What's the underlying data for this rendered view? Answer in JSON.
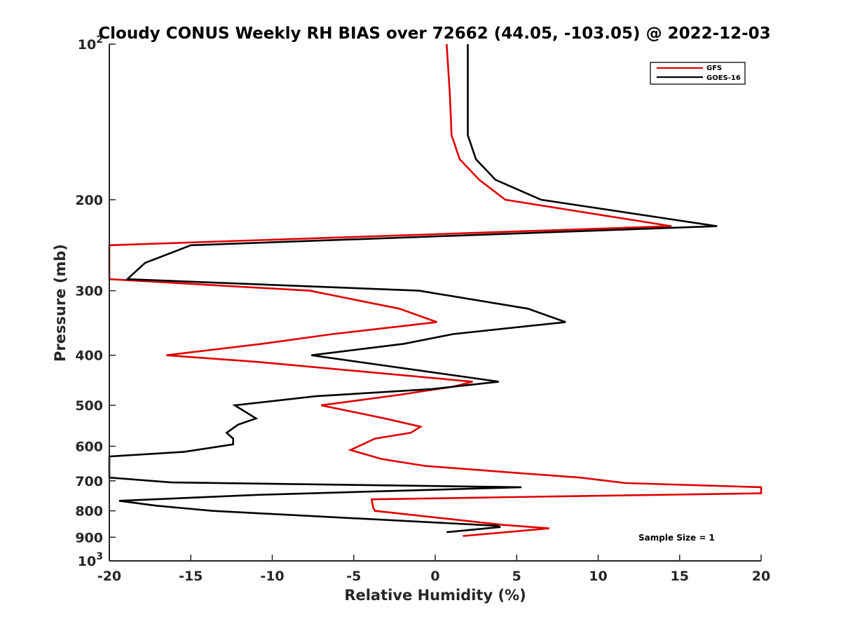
{
  "chart_data": {
    "type": "line",
    "title": "Cloudy CONUS Weekly RH BIAS over 72662 (44.05, -103.05) @ 2022-12-03",
    "xlabel": "Relative Humidity (%)",
    "ylabel": "Pressure (mb)",
    "xlim": [
      -20,
      20
    ],
    "ylim": [
      100,
      1000
    ],
    "y_scale": "log",
    "y_reversed": true,
    "xticks": [
      -20,
      -15,
      -10,
      -5,
      0,
      5,
      10,
      15,
      20
    ],
    "xtick_labels": [
      "-20",
      "-15",
      "-10",
      "-5",
      "0",
      "5",
      "10",
      "15",
      "20"
    ],
    "yticks": [
      100,
      200,
      300,
      400,
      500,
      600,
      700,
      800,
      900,
      1000
    ],
    "ytick_labels": [
      {
        "base": "10",
        "exp": "2"
      },
      {
        "base": "200",
        "exp": ""
      },
      {
        "base": "300",
        "exp": ""
      },
      {
        "base": "400",
        "exp": ""
      },
      {
        "base": "500",
        "exp": ""
      },
      {
        "base": "600",
        "exp": ""
      },
      {
        "base": "700",
        "exp": ""
      },
      {
        "base": "800",
        "exp": ""
      },
      {
        "base": "900",
        "exp": ""
      },
      {
        "base": "10",
        "exp": "3"
      }
    ],
    "grid": false,
    "legend_position": "top-right",
    "annotation": "Sample Size = 1",
    "series": [
      {
        "name": "GFS",
        "color": "#e00000",
        "points": [
          [
            0.7,
            100
          ],
          [
            0.9,
            125
          ],
          [
            1.0,
            150
          ],
          [
            1.5,
            167
          ],
          [
            2.7,
            183
          ],
          [
            4.3,
            200
          ],
          [
            14.5,
            225
          ],
          [
            -20.0,
            245
          ],
          [
            -20.0,
            285
          ],
          [
            -7.7,
            300
          ],
          [
            -2.2,
            325
          ],
          [
            0.1,
            345
          ],
          [
            -6.3,
            364
          ],
          [
            -10.6,
            380
          ],
          [
            -16.5,
            400
          ],
          [
            -10.9,
            412
          ],
          [
            2.3,
            450
          ],
          [
            1.1,
            460
          ],
          [
            -2.2,
            477
          ],
          [
            -7.0,
            500
          ],
          [
            -3.1,
            530
          ],
          [
            -0.9,
            550
          ],
          [
            -1.5,
            565
          ],
          [
            -3.7,
            580
          ],
          [
            -5.2,
            610
          ],
          [
            -3.3,
            635
          ],
          [
            -0.6,
            655
          ],
          [
            4.8,
            675
          ],
          [
            8.9,
            690
          ],
          [
            11.7,
            707
          ],
          [
            20.0,
            720
          ],
          [
            20.0,
            740
          ],
          [
            7.7,
            750
          ],
          [
            -3.9,
            760
          ],
          [
            -3.8,
            790
          ],
          [
            -3.7,
            800
          ],
          [
            4.2,
            852
          ],
          [
            7.0,
            865
          ],
          [
            1.7,
            895
          ]
        ]
      },
      {
        "name": "GOES-16",
        "color": "#000000",
        "points": [
          [
            2.0,
            100
          ],
          [
            2.0,
            125
          ],
          [
            2.0,
            150
          ],
          [
            2.5,
            167
          ],
          [
            3.7,
            183
          ],
          [
            6.5,
            200
          ],
          [
            17.3,
            225
          ],
          [
            -15.0,
            245
          ],
          [
            -17.8,
            265
          ],
          [
            -18.9,
            285
          ],
          [
            -1.0,
            300
          ],
          [
            5.7,
            325
          ],
          [
            8.0,
            345
          ],
          [
            1.1,
            364
          ],
          [
            -1.9,
            380
          ],
          [
            -7.6,
            400
          ],
          [
            3.9,
            450
          ],
          [
            -0.2,
            465
          ],
          [
            -7.3,
            480
          ],
          [
            -12.3,
            500
          ],
          [
            -11.0,
            530
          ],
          [
            -12.1,
            545
          ],
          [
            -12.8,
            565
          ],
          [
            -12.4,
            580
          ],
          [
            -12.4,
            595
          ],
          [
            -15.4,
            615
          ],
          [
            -20.0,
            628
          ],
          [
            -20.0,
            690
          ],
          [
            -16.2,
            705
          ],
          [
            5.3,
            720
          ],
          [
            -10.9,
            745
          ],
          [
            -19.4,
            765
          ],
          [
            -17.1,
            782
          ],
          [
            -13.7,
            800
          ],
          [
            3.8,
            855
          ],
          [
            4.0,
            860
          ],
          [
            0.7,
            880
          ]
        ]
      }
    ]
  }
}
